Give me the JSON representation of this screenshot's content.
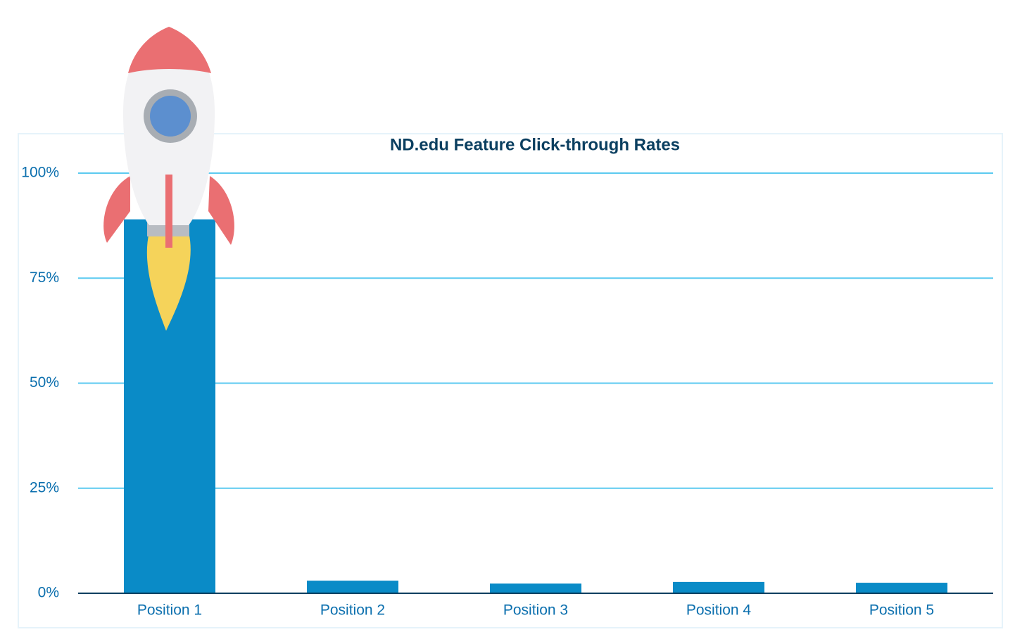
{
  "chart_data": {
    "type": "bar",
    "title": "ND.edu Feature Click-through Rates",
    "categories": [
      "Position 1",
      "Position 2",
      "Position 3",
      "Position 4",
      "Position 5"
    ],
    "values": [
      89,
      3,
      2.3,
      2.7,
      2.5
    ],
    "color": "#0a8bc7",
    "ylim": [
      0,
      100
    ],
    "yticks": [
      {
        "value": 0,
        "label": "0%"
      },
      {
        "value": 25,
        "label": "25%"
      },
      {
        "value": 50,
        "label": "50%"
      },
      {
        "value": 75,
        "label": "75%"
      },
      {
        "value": 100,
        "label": "100%"
      }
    ],
    "grid": true
  }
}
